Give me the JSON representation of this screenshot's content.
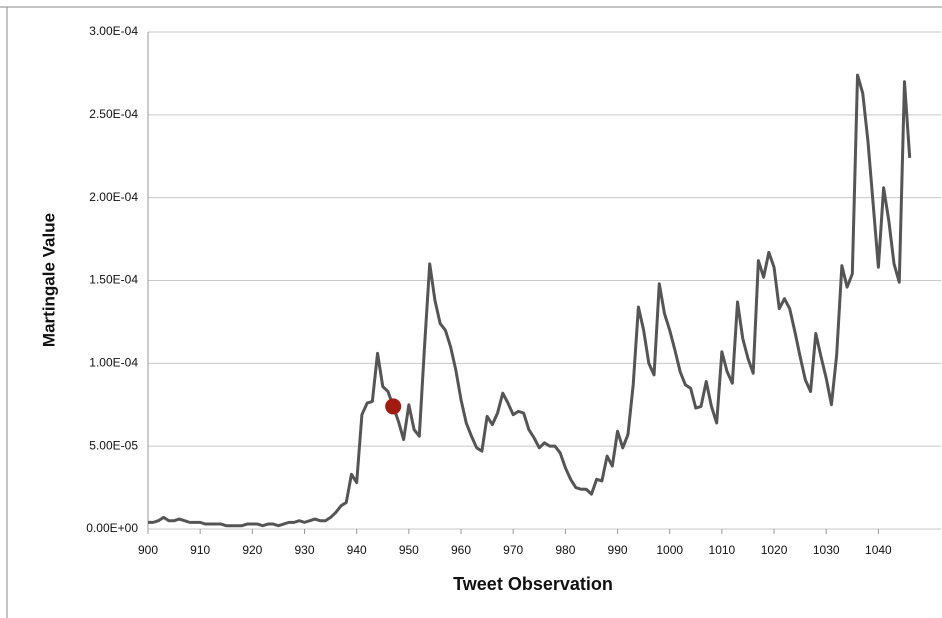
{
  "chart_data": {
    "type": "line",
    "x_label": "Tweet Observation",
    "y_label": "Martingale Value",
    "x": [
      900,
      901,
      902,
      903,
      904,
      905,
      906,
      907,
      908,
      909,
      910,
      911,
      912,
      913,
      914,
      915,
      916,
      917,
      918,
      919,
      920,
      921,
      922,
      923,
      924,
      925,
      926,
      927,
      928,
      929,
      930,
      931,
      932,
      933,
      934,
      935,
      936,
      937,
      938,
      939,
      940,
      941,
      942,
      943,
      944,
      945,
      946,
      947,
      948,
      949,
      950,
      951,
      952,
      953,
      954,
      955,
      956,
      957,
      958,
      959,
      960,
      961,
      962,
      963,
      964,
      965,
      966,
      967,
      968,
      969,
      970,
      971,
      972,
      973,
      974,
      975,
      976,
      977,
      978,
      979,
      980,
      981,
      982,
      983,
      984,
      985,
      986,
      987,
      988,
      989,
      990,
      991,
      992,
      993,
      994,
      995,
      996,
      997,
      998,
      999,
      1000,
      1001,
      1002,
      1003,
      1004,
      1005,
      1006,
      1007,
      1008,
      1009,
      1010,
      1011,
      1012,
      1013,
      1014,
      1015,
      1016,
      1017,
      1018,
      1019,
      1020,
      1021,
      1022,
      1023,
      1024,
      1025,
      1026,
      1027,
      1028,
      1029,
      1030,
      1031,
      1032,
      1033,
      1034,
      1035,
      1036,
      1037,
      1038,
      1039,
      1040,
      1041,
      1042,
      1043,
      1044,
      1045,
      1046
    ],
    "series": [
      {
        "color": "#555555",
        "values": [
          4e-06,
          4e-06,
          5e-06,
          7e-06,
          5e-06,
          5e-06,
          6e-06,
          5e-06,
          4e-06,
          4e-06,
          4e-06,
          3e-06,
          3e-06,
          3e-06,
          3e-06,
          2e-06,
          2e-06,
          2e-06,
          2e-06,
          3e-06,
          3e-06,
          3e-06,
          2e-06,
          3e-06,
          3e-06,
          2e-06,
          3e-06,
          4e-06,
          4e-06,
          5e-06,
          4e-06,
          5e-06,
          6e-06,
          5e-06,
          5e-06,
          7e-06,
          1e-05,
          1.4e-05,
          1.6e-05,
          3.3e-05,
          2.8e-05,
          6.9e-05,
          7.6e-05,
          7.7e-05,
          0.000106,
          8.6e-05,
          8.3e-05,
          7.4e-05,
          6.5e-05,
          5.4e-05,
          7.5e-05,
          6e-05,
          5.6e-05,
          0.00011,
          0.00016,
          0.000138,
          0.000124,
          0.00012,
          0.00011,
          9.6e-05,
          7.8e-05,
          6.4e-05,
          5.6e-05,
          4.9e-05,
          4.7e-05,
          6.8e-05,
          6.3e-05,
          7e-05,
          8.2e-05,
          7.6e-05,
          6.9e-05,
          7.1e-05,
          7e-05,
          6e-05,
          5.5e-05,
          4.9e-05,
          5.2e-05,
          5e-05,
          5e-05,
          4.6e-05,
          3.7e-05,
          3e-05,
          2.5e-05,
          2.4e-05,
          2.4e-05,
          2.1e-05,
          3e-05,
          2.9e-05,
          4.4e-05,
          3.8e-05,
          5.9e-05,
          4.9e-05,
          5.7e-05,
          8.7e-05,
          0.000134,
          0.00012,
          0.0001,
          9.3e-05,
          0.000148,
          0.00013,
          0.00012,
          0.000108,
          9.5e-05,
          8.7e-05,
          8.5e-05,
          7.3e-05,
          7.4e-05,
          8.9e-05,
          7.4e-05,
          6.4e-05,
          0.000107,
          9.5e-05,
          8.8e-05,
          0.000137,
          0.000115,
          0.000103,
          9.4e-05,
          0.000162,
          0.000152,
          0.000167,
          0.000158,
          0.000133,
          0.000139,
          0.000133,
          0.000119,
          0.000104,
          9e-05,
          8.3e-05,
          0.000118,
          0.000104,
          9.1e-05,
          7.5e-05,
          0.000105,
          0.000159,
          0.000146,
          0.000154,
          0.000274,
          0.000263,
          0.000234,
          0.000196,
          0.000158,
          0.000206,
          0.000186,
          0.00016,
          0.000149,
          0.00027,
          0.000224
        ]
      }
    ],
    "highlight": {
      "x": 947,
      "y": 7.4e-05,
      "color": "#a31a10"
    },
    "xlim": [
      900,
      1052
    ],
    "xticks": [
      900,
      910,
      920,
      930,
      940,
      950,
      960,
      970,
      980,
      990,
      1000,
      1010,
      1020,
      1030,
      1040
    ],
    "ylim": [
      0,
      0.0003
    ],
    "yticks": [
      {
        "value": 0,
        "label": "0.00E+00"
      },
      {
        "value": 5e-05,
        "label": "5.00E-05"
      },
      {
        "value": 0.0001,
        "label": "1.00E-04"
      },
      {
        "value": 0.00015,
        "label": "1.50E-04"
      },
      {
        "value": 0.0002,
        "label": "2.00E-04"
      },
      {
        "value": 0.00025,
        "label": "2.50E-04"
      },
      {
        "value": 0.0003,
        "label": "3.00E-04"
      }
    ],
    "grid": true
  }
}
